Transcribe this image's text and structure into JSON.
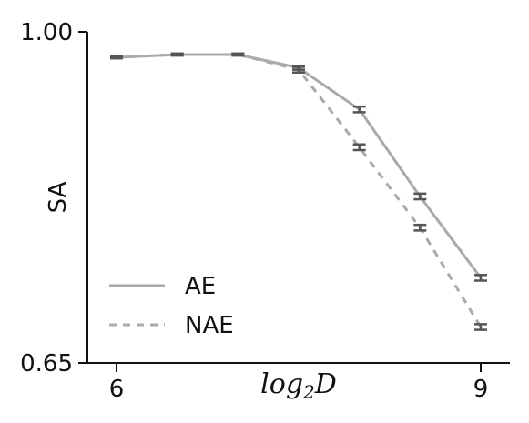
{
  "chart_data": {
    "type": "line",
    "xlabel": "log2D",
    "ylabel": "SA",
    "xlim": [
      6,
      9
    ],
    "ylim": [
      0.65,
      1.0
    ],
    "x_ticks": [
      "6",
      "9"
    ],
    "y_ticks": [
      "1.00",
      "0.65"
    ],
    "x": [
      6,
      6.5,
      7,
      7.5,
      8,
      8.5,
      9
    ],
    "grid": false,
    "legend_position": "bottom-left",
    "error_bars": true,
    "series": [
      {
        "name": "AE",
        "style": "solid",
        "color": "#aaaaaa",
        "values": [
          0.973,
          0.976,
          0.976,
          0.962,
          0.918,
          0.826,
          0.74
        ],
        "errors": [
          0.001,
          0.001,
          0.001,
          0.002,
          0.003,
          0.003,
          0.003
        ]
      },
      {
        "name": "NAE",
        "style": "dashed",
        "color": "#aaaaaa",
        "values": [
          0.973,
          0.976,
          0.976,
          0.96,
          0.878,
          0.793,
          0.688
        ],
        "errors": [
          0.001,
          0.001,
          0.001,
          0.003,
          0.003,
          0.003,
          0.003
        ]
      }
    ],
    "errorbar_color": "#555555"
  }
}
